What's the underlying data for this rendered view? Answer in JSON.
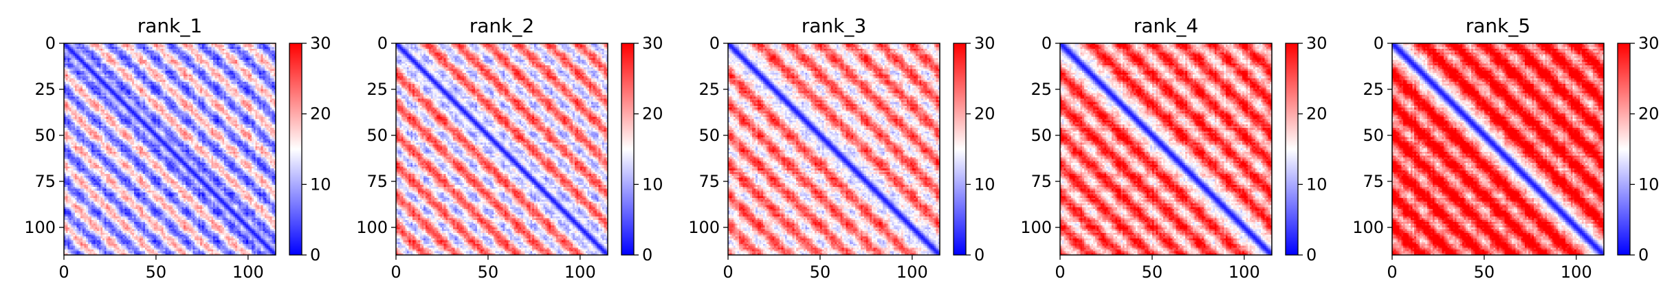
{
  "chart_data": [
    {
      "type": "heatmap",
      "title": "rank_1",
      "matrix_size": 115,
      "xticks": [
        0,
        50,
        100
      ],
      "yticks": [
        0,
        25,
        50,
        75,
        100
      ],
      "xlim": [
        0,
        115
      ],
      "ylim": [
        115,
        0
      ],
      "colorbar": {
        "ticks": [
          0,
          10,
          20,
          30
        ],
        "range": [
          0,
          30
        ],
        "colormap": "bwr"
      },
      "mean_value": 12.5,
      "period": 16.5
    },
    {
      "type": "heatmap",
      "title": "rank_2",
      "matrix_size": 115,
      "xticks": [
        0,
        50,
        100
      ],
      "yticks": [
        0,
        25,
        50,
        75,
        100
      ],
      "xlim": [
        0,
        115
      ],
      "ylim": [
        115,
        0
      ],
      "colorbar": {
        "ticks": [
          0,
          10,
          20,
          30
        ],
        "range": [
          0,
          30
        ],
        "colormap": "bwr"
      },
      "mean_value": 18,
      "period": 16.5
    },
    {
      "type": "heatmap",
      "title": "rank_3",
      "matrix_size": 115,
      "xticks": [
        0,
        50,
        100
      ],
      "yticks": [
        0,
        25,
        50,
        75,
        100
      ],
      "xlim": [
        0,
        115
      ],
      "ylim": [
        115,
        0
      ],
      "colorbar": {
        "ticks": [
          0,
          10,
          20,
          30
        ],
        "range": [
          0,
          30
        ],
        "colormap": "bwr"
      },
      "mean_value": 20,
      "period": 16.5
    },
    {
      "type": "heatmap",
      "title": "rank_4",
      "matrix_size": 115,
      "xticks": [
        0,
        50,
        100
      ],
      "yticks": [
        0,
        25,
        50,
        75,
        100
      ],
      "xlim": [
        0,
        115
      ],
      "ylim": [
        115,
        0
      ],
      "colorbar": {
        "ticks": [
          0,
          10,
          20,
          30
        ],
        "range": [
          0,
          30
        ],
        "colormap": "bwr"
      },
      "mean_value": 23,
      "period": 16.5
    },
    {
      "type": "heatmap",
      "title": "rank_5",
      "matrix_size": 115,
      "xticks": [
        0,
        50,
        100
      ],
      "yticks": [
        0,
        25,
        50,
        75,
        100
      ],
      "xlim": [
        0,
        115
      ],
      "ylim": [
        115,
        0
      ],
      "colorbar": {
        "ticks": [
          0,
          10,
          20,
          30
        ],
        "range": [
          0,
          30
        ],
        "colormap": "bwr"
      },
      "mean_value": 26,
      "period": 16.5
    }
  ],
  "colors": {
    "low": "#0000ff",
    "mid": "#ffffff",
    "high": "#ff0000",
    "axis": "#000000"
  }
}
